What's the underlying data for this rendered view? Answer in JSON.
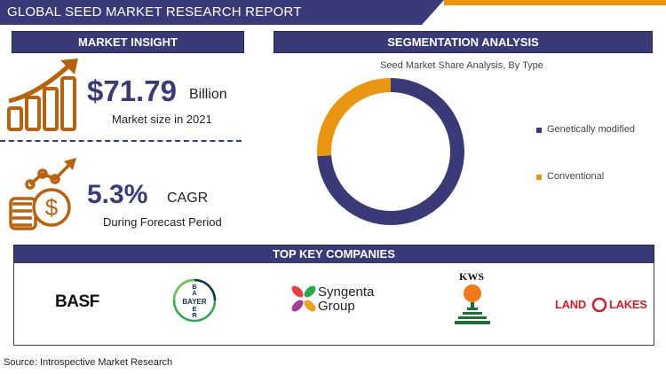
{
  "header": {
    "title": "GLOBAL SEED MARKET RESEARCH REPORT"
  },
  "market_insight": {
    "heading": "MARKET INSIGHT",
    "market_size_value": "$71.79",
    "market_size_unit": "Billion",
    "market_size_label": "Market size in 2021",
    "cagr_value": "5.3%",
    "cagr_unit": "CAGR",
    "cagr_label": "During Forecast Period"
  },
  "segmentation": {
    "heading": "SEGMENTATION ANALYSIS"
  },
  "chart_data": {
    "type": "pie",
    "title": "Seed Market Share Analysis, By Type",
    "categories": [
      "Genetically modified",
      "Conventional"
    ],
    "values": [
      74,
      26
    ],
    "colors": [
      "#3a3a78",
      "#e8950f"
    ],
    "legend": "right"
  },
  "companies": {
    "heading": "TOP KEY COMPANIES",
    "basf": "BASF",
    "bayer_letters": "BAYER",
    "syngenta_line1": "Syngenta",
    "syngenta_line2": "Group",
    "kws": "KWS",
    "landolakes_left": "LAND",
    "landolakes_right": "LAKES"
  },
  "footer": {
    "source": "Source: Introspective Market Research"
  },
  "icons": {
    "growth": "bar-chart-growth-arrow-icon",
    "cagr": "coin-dollar-growth-icon"
  }
}
